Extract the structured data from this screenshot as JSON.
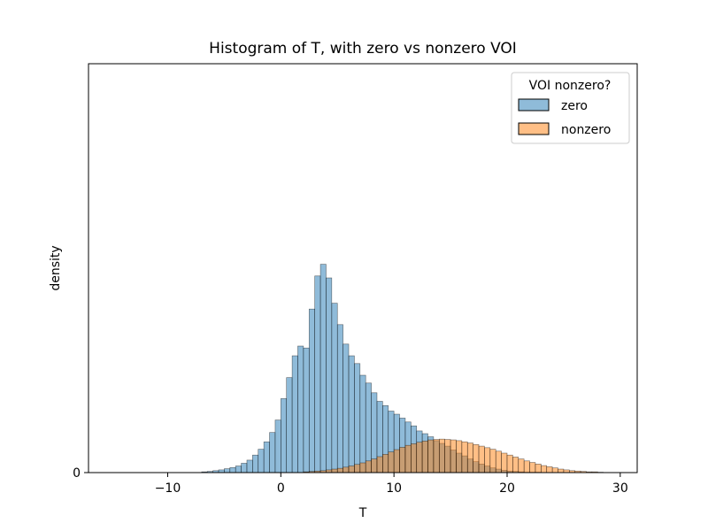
{
  "chart_data": {
    "type": "bar",
    "title": "Histogram of T, with zero vs nonzero VOI",
    "xlabel": "T",
    "ylabel": "density",
    "xlim": [
      -17.0,
      31.5
    ],
    "ylim": [
      0,
      1.05
    ],
    "x_ticks": [
      -10,
      0,
      10,
      20,
      30
    ],
    "x_tick_labels": [
      "−10",
      "0",
      "10",
      "20",
      "30"
    ],
    "y_ticks": [
      0
    ],
    "y_tick_labels": [
      "0"
    ],
    "bin_width": 0.5,
    "legend": {
      "title": "VOI nonzero?",
      "location": "upper right",
      "entries": [
        "zero",
        "nonzero"
      ]
    },
    "series": [
      {
        "name": "zero",
        "color": "#1f77b4",
        "bin_start": -7.0,
        "values": [
          0.002,
          0.003,
          0.005,
          0.007,
          0.01,
          0.013,
          0.017,
          0.024,
          0.032,
          0.045,
          0.06,
          0.079,
          0.103,
          0.135,
          0.19,
          0.244,
          0.3,
          0.325,
          0.32,
          0.42,
          0.505,
          0.535,
          0.5,
          0.435,
          0.38,
          0.33,
          0.3,
          0.28,
          0.25,
          0.23,
          0.205,
          0.183,
          0.172,
          0.158,
          0.15,
          0.14,
          0.13,
          0.12,
          0.107,
          0.1,
          0.092,
          0.082,
          0.075,
          0.068,
          0.058,
          0.05,
          0.043,
          0.035,
          0.028,
          0.022,
          0.017,
          0.012,
          0.009,
          0.006,
          0.004,
          0.003,
          0.002,
          0.001,
          0.001,
          0.001
        ]
      },
      {
        "name": "nonzero",
        "color": "#ff7f0e",
        "bin_start": 2.0,
        "values": [
          0.002,
          0.003,
          0.004,
          0.005,
          0.007,
          0.009,
          0.011,
          0.014,
          0.017,
          0.021,
          0.025,
          0.03,
          0.035,
          0.041,
          0.047,
          0.053,
          0.059,
          0.065,
          0.07,
          0.074,
          0.078,
          0.081,
          0.084,
          0.085,
          0.086,
          0.085,
          0.084,
          0.082,
          0.079,
          0.076,
          0.072,
          0.068,
          0.064,
          0.06,
          0.055,
          0.05,
          0.045,
          0.04,
          0.035,
          0.03,
          0.026,
          0.022,
          0.018,
          0.015,
          0.012,
          0.009,
          0.007,
          0.005,
          0.004,
          0.003,
          0.002,
          0.002,
          0.001
        ]
      }
    ]
  }
}
